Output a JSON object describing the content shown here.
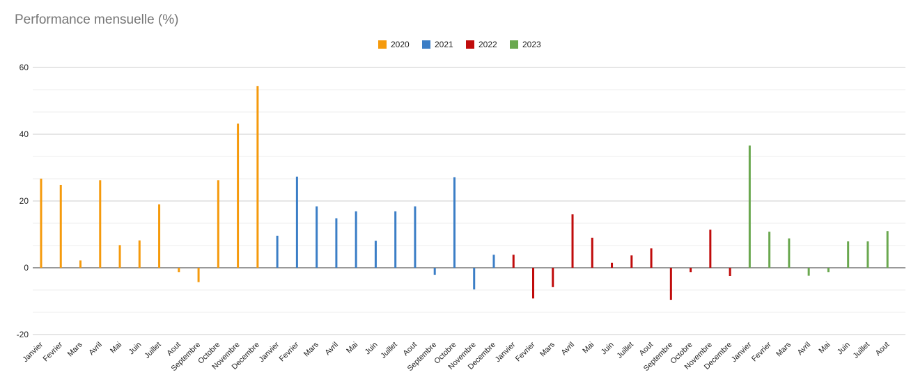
{
  "chart_data": {
    "type": "bar",
    "title": "Performance mensuelle (%)",
    "xlabel": "",
    "ylabel": "",
    "ylim": [
      -20,
      60
    ],
    "yticks": [
      -20,
      0,
      20,
      40,
      60
    ],
    "grid": true,
    "legend_position": "top",
    "series": [
      {
        "name": "2020",
        "color": "#f59a0c",
        "categories": [
          "Janvier",
          "Fevrier",
          "Mars",
          "Avril",
          "Mai",
          "Juin",
          "Juillet",
          "Aout",
          "Septembre",
          "Octobre",
          "Novembre",
          "Decembre"
        ],
        "values": [
          26.7,
          24.8,
          2.2,
          26.2,
          6.8,
          8.2,
          19.0,
          -1.3,
          -4.3,
          26.2,
          43.2,
          54.4
        ]
      },
      {
        "name": "2021",
        "color": "#3b7ec6",
        "categories": [
          "Janvier",
          "Fevrier",
          "Mars",
          "Avril",
          "Mai",
          "Juin",
          "Juillet",
          "Aout",
          "Septembre",
          "Octobre",
          "Novembre",
          "Decembre"
        ],
        "values": [
          9.6,
          27.3,
          18.4,
          14.8,
          16.9,
          8.1,
          16.9,
          18.4,
          -2.1,
          27.1,
          -6.5,
          3.9
        ]
      },
      {
        "name": "2022",
        "color": "#c00b0b",
        "categories": [
          "Janvier",
          "Fevrier",
          "Mars",
          "Avril",
          "Mai",
          "Juin",
          "Juillet",
          "Aout",
          "Septembre",
          "Octobre",
          "Novembre",
          "Decembre"
        ],
        "values": [
          3.9,
          -9.2,
          -5.8,
          16.0,
          9.0,
          1.5,
          3.7,
          5.8,
          -9.6,
          -1.3,
          11.4,
          -2.5
        ]
      },
      {
        "name": "2023",
        "color": "#6aa84f",
        "categories": [
          "Janvier",
          "Fevrier",
          "Mars",
          "Avril",
          "Mai",
          "Juin",
          "Juillet",
          "Aout"
        ],
        "values": [
          36.6,
          10.8,
          8.8,
          -2.4,
          -1.3,
          7.9,
          7.9,
          11.0
        ]
      }
    ]
  }
}
